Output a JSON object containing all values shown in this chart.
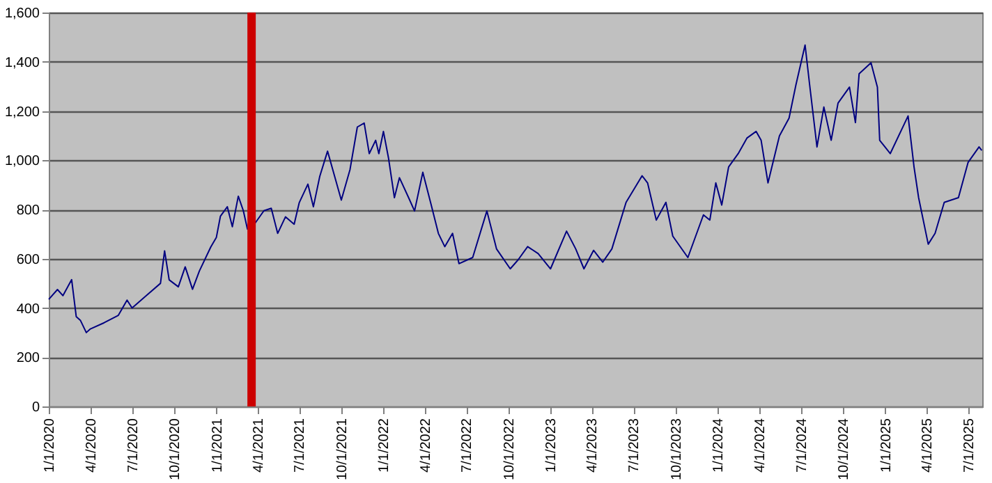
{
  "chart_data": {
    "type": "line",
    "x": [
      "2020-01-01",
      "2020-01-20",
      "2020-02-01",
      "2020-02-20",
      "2020-03-01",
      "2020-03-10",
      "2020-03-23",
      "2020-04-01",
      "2020-05-01",
      "2020-06-01",
      "2020-06-20",
      "2020-07-01",
      "2020-08-01",
      "2020-09-01",
      "2020-09-10",
      "2020-09-20",
      "2020-10-10",
      "2020-10-25",
      "2020-11-10",
      "2020-11-25",
      "2020-12-20",
      "2021-01-01",
      "2021-01-10",
      "2021-01-25",
      "2021-02-05",
      "2021-02-18",
      "2021-03-01",
      "2021-03-10",
      "2021-03-25",
      "2021-04-15",
      "2021-05-01",
      "2021-05-15",
      "2021-06-01",
      "2021-06-20",
      "2021-07-01",
      "2021-07-20",
      "2021-08-01",
      "2021-08-15",
      "2021-09-01",
      "2021-10-01",
      "2021-10-20",
      "2021-11-05",
      "2021-11-20",
      "2021-12-01",
      "2021-12-15",
      "2021-12-22",
      "2022-01-01",
      "2022-01-12",
      "2022-01-25",
      "2022-02-05",
      "2022-02-25",
      "2022-03-10",
      "2022-03-28",
      "2022-04-15",
      "2022-05-01",
      "2022-05-15",
      "2022-06-01",
      "2022-06-15",
      "2022-07-15",
      "2022-08-15",
      "2022-09-05",
      "2022-10-05",
      "2022-10-22",
      "2022-11-12",
      "2022-12-05",
      "2023-01-01",
      "2023-02-05",
      "2023-02-25",
      "2023-03-15",
      "2023-04-05",
      "2023-04-25",
      "2023-05-15",
      "2023-06-15",
      "2023-07-20",
      "2023-08-01",
      "2023-08-20",
      "2023-09-10",
      "2023-09-25",
      "2023-10-28",
      "2023-12-01",
      "2023-12-15",
      "2023-12-28",
      "2024-01-10",
      "2024-01-25",
      "2024-02-15",
      "2024-03-05",
      "2024-03-25",
      "2024-04-05",
      "2024-04-20",
      "2024-05-15",
      "2024-06-05",
      "2024-06-20",
      "2024-07-10",
      "2024-07-20",
      "2024-08-05",
      "2024-08-20",
      "2024-09-05",
      "2024-09-20",
      "2024-10-15",
      "2024-10-28",
      "2024-11-05",
      "2024-12-01",
      "2024-12-15",
      "2024-12-20",
      "2025-01-12",
      "2025-02-20",
      "2025-03-05",
      "2025-03-15",
      "2025-04-05",
      "2025-04-20",
      "2025-05-10",
      "2025-06-10",
      "2025-07-01",
      "2025-07-25",
      "2025-07-31"
    ],
    "series": [
      {
        "color": "#000080",
        "values": [
          435,
          475,
          450,
          515,
          365,
          350,
          300,
          315,
          340,
          370,
          432,
          400,
          450,
          500,
          632,
          514,
          486,
          567,
          476,
          550,
          648,
          686,
          773,
          811,
          730,
          854,
          795,
          720,
          740,
          795,
          805,
          703,
          770,
          740,
          827,
          903,
          811,
          935,
          1037,
          838,
          962,
          1135,
          1151,
          1027,
          1081,
          1027,
          1117,
          1010,
          848,
          929,
          848,
          794,
          951,
          821,
          703,
          649,
          703,
          580,
          605,
          794,
          640,
          559,
          595,
          649,
          621,
          559,
          712,
          640,
          559,
          634,
          586,
          640,
          829,
          937,
          908,
          757,
          829,
          692,
          605,
          778,
          757,
          908,
          818,
          973,
          1027,
          1090,
          1117,
          1081,
          908,
          1099,
          1171,
          1306,
          1468,
          1306,
          1054,
          1216,
          1081,
          1232,
          1297,
          1153,
          1351,
          1396,
          1297,
          1081,
          1027,
          1180,
          973,
          848,
          659,
          703,
          829,
          848,
          991,
          1054,
          1040
        ]
      }
    ],
    "xlim": [
      "2020-01-01",
      "2025-08-01"
    ],
    "xticks": [
      {
        "value": "2020-01-01",
        "label": "1/1/2020"
      },
      {
        "value": "2020-04-01",
        "label": "4/1/2020"
      },
      {
        "value": "2020-07-01",
        "label": "7/1/2020"
      },
      {
        "value": "2020-10-01",
        "label": "10/1/2020"
      },
      {
        "value": "2021-01-01",
        "label": "1/1/2021"
      },
      {
        "value": "2021-04-01",
        "label": "4/1/2021"
      },
      {
        "value": "2021-07-01",
        "label": "7/1/2021"
      },
      {
        "value": "2021-10-01",
        "label": "10/1/2021"
      },
      {
        "value": "2022-01-01",
        "label": "1/1/2022"
      },
      {
        "value": "2022-04-01",
        "label": "4/1/2022"
      },
      {
        "value": "2022-07-01",
        "label": "7/1/2022"
      },
      {
        "value": "2022-10-01",
        "label": "10/1/2022"
      },
      {
        "value": "2023-01-01",
        "label": "1/1/2023"
      },
      {
        "value": "2023-04-01",
        "label": "4/1/2023"
      },
      {
        "value": "2023-07-01",
        "label": "7/1/2023"
      },
      {
        "value": "2023-10-01",
        "label": "10/1/2023"
      },
      {
        "value": "2024-01-01",
        "label": "1/1/2024"
      },
      {
        "value": "2024-04-01",
        "label": "4/1/2024"
      },
      {
        "value": "2024-07-01",
        "label": "7/1/2024"
      },
      {
        "value": "2024-10-01",
        "label": "10/1/2024"
      },
      {
        "value": "2025-01-01",
        "label": "1/1/2025"
      },
      {
        "value": "2025-04-01",
        "label": "4/1/2025"
      },
      {
        "value": "2025-07-01",
        "label": "7/1/2025"
      }
    ],
    "ylim": [
      0,
      1600
    ],
    "yticks": [
      0,
      200,
      400,
      600,
      800,
      {
        "value": 1000,
        "label": "1,000"
      },
      {
        "value": 1200,
        "label": "1,200"
      },
      {
        "value": 1400,
        "label": "1,400"
      },
      {
        "value": 1600,
        "label": "1,600"
      }
    ],
    "grid": "y",
    "ref_lines": [
      {
        "axis": "x",
        "value": "2021-03-19",
        "color": "#cc0000"
      }
    ]
  }
}
